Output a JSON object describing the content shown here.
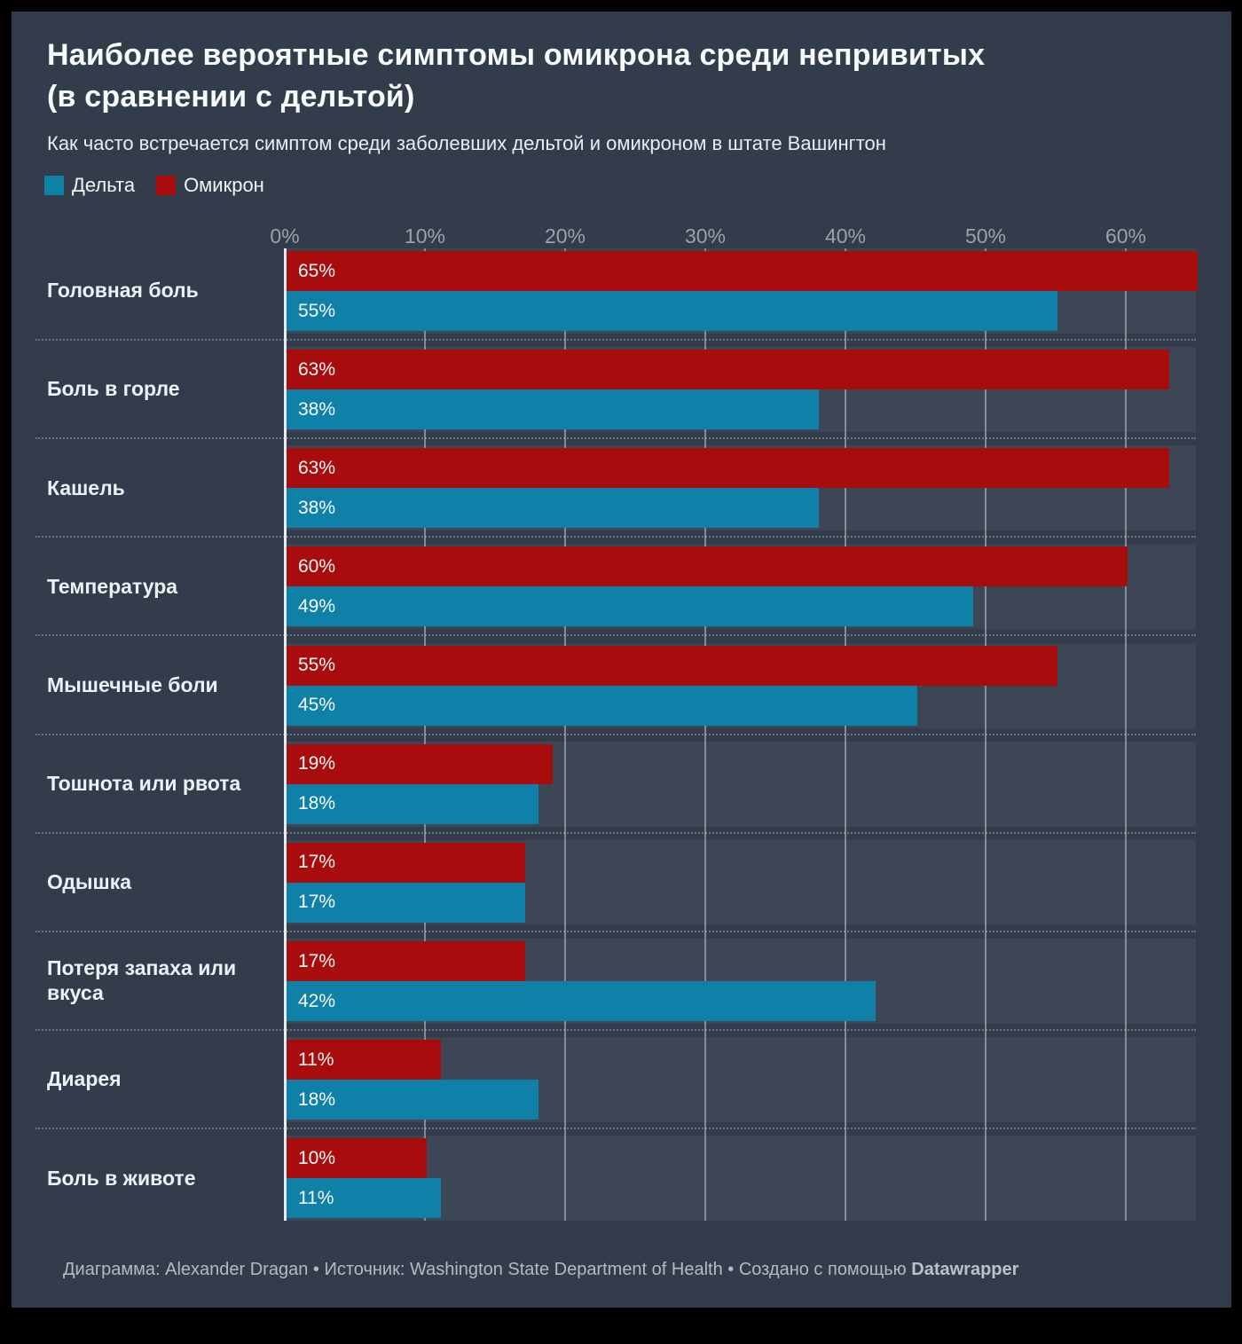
{
  "frame": {
    "outer_background": "#000000",
    "panel_background": "#323c4b",
    "row_band_background": "#3d4654"
  },
  "header": {
    "title_line1": "Наиболее вероятные симптомы омикрона среди непривитых",
    "title_line2": "(в сравнении с дельтой)",
    "subtitle": "Как часто встречается симптом среди заболевших дельтой и омикроном в штате Вашингтон"
  },
  "legend": {
    "items": [
      {
        "label": "Дельта",
        "color": "#0f81a8"
      },
      {
        "label": "Омикрон",
        "color": "#a90c0c"
      }
    ]
  },
  "chart_data": {
    "type": "bar",
    "orientation": "horizontal",
    "title": "Наиболее вероятные симптомы омикрона среди непривитых (в сравнении с дельтой)",
    "subtitle": "Как часто встречается симптом среди заболевших дельтой и омикроном в штате Вашингтон",
    "categories": [
      "Головная боль",
      "Боль в горле",
      "Кашель",
      "Температура",
      "Мышечные боли",
      "Тошнота или рвота",
      "Одышка",
      "Потеря запаха или вкуса",
      "Диарея",
      "Боль в животе"
    ],
    "series": [
      {
        "name": "Омикрон",
        "color": "#a90c0c",
        "values": [
          65,
          63,
          63,
          60,
          55,
          19,
          17,
          17,
          11,
          10
        ]
      },
      {
        "name": "Дельта",
        "color": "#0f81a8",
        "values": [
          55,
          38,
          38,
          49,
          45,
          18,
          17,
          42,
          18,
          11
        ]
      }
    ],
    "value_suffix": "%",
    "x_axis": {
      "tick_labels": [
        "0%",
        "10%",
        "20%",
        "30%",
        "40%",
        "50%",
        "60%"
      ],
      "tick_values": [
        0,
        10,
        20,
        30,
        40,
        50,
        60
      ],
      "min": 0,
      "max": 65
    },
    "grid": true,
    "legend_position": "top-left",
    "bar_order_per_category": [
      "Омикрон",
      "Дельта"
    ]
  },
  "footer": {
    "credit_text": "Диаграмма: Alexander Dragan • Источник: Washington State Department of Health • Создано с помощью ",
    "brand": "Datawrapper"
  }
}
